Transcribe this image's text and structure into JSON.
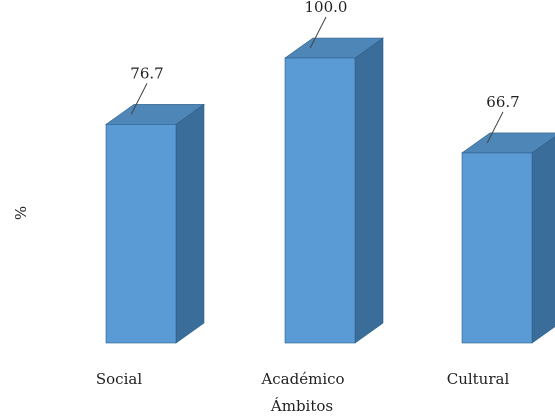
{
  "chart_data": {
    "type": "bar",
    "categories": [
      "Social",
      "Académico",
      "Cultural"
    ],
    "values": [
      76.7,
      100.0,
      66.7
    ],
    "value_labels": [
      "76.7",
      "100.0",
      "66.7"
    ],
    "title": "",
    "xlabel": "Ámbitos",
    "ylabel": "%",
    "ylim": [
      0,
      100
    ],
    "grid": false,
    "legend": "none",
    "style": "3d-column"
  },
  "colors": {
    "bar_front": "#5b9bd5",
    "bar_side": "#3a6d99",
    "bar_top": "#4f86b8",
    "bar_edge": "#2f5f8a",
    "text": "#222222"
  }
}
